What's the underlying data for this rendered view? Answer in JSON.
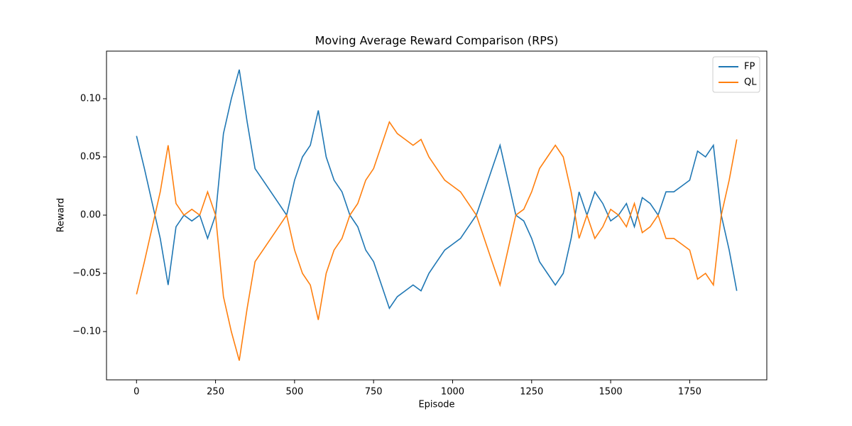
{
  "chart_data": {
    "type": "line",
    "title": "Moving Average Reward Comparison (RPS)",
    "x_label": "Episode",
    "y_label": "Reward",
    "x": [
      0,
      25,
      50,
      75,
      100,
      125,
      150,
      175,
      200,
      225,
      250,
      275,
      300,
      325,
      350,
      375,
      400,
      425,
      450,
      475,
      500,
      525,
      550,
      575,
      600,
      625,
      650,
      675,
      700,
      725,
      750,
      775,
      800,
      825,
      850,
      875,
      900,
      925,
      950,
      975,
      1000,
      1025,
      1050,
      1075,
      1100,
      1125,
      1150,
      1175,
      1200,
      1225,
      1250,
      1275,
      1300,
      1325,
      1350,
      1375,
      1400,
      1425,
      1450,
      1475,
      1500,
      1525,
      1550,
      1575,
      1600,
      1625,
      1650,
      1675,
      1700,
      1725,
      1750,
      1775,
      1800,
      1825,
      1850,
      1875,
      1899
    ],
    "series": [
      {
        "name": "FP",
        "color": "#1f77b4",
        "values": [
          0.068,
          0.04,
          0.01,
          -0.02,
          -0.06,
          -0.01,
          0.0,
          -0.005,
          0.0,
          -0.02,
          0.0,
          0.07,
          0.1,
          0.125,
          0.08,
          0.04,
          0.03,
          0.02,
          0.01,
          0.0,
          0.03,
          0.05,
          0.06,
          0.09,
          0.05,
          0.03,
          0.02,
          0.0,
          -0.01,
          -0.03,
          -0.04,
          -0.06,
          -0.08,
          -0.07,
          -0.065,
          -0.06,
          -0.065,
          -0.05,
          -0.04,
          -0.03,
          -0.025,
          -0.02,
          -0.01,
          0.0,
          0.02,
          0.04,
          0.06,
          0.03,
          0.0,
          -0.005,
          -0.02,
          -0.04,
          -0.05,
          -0.06,
          -0.05,
          -0.02,
          0.02,
          0.0,
          0.02,
          0.01,
          -0.005,
          0.0,
          0.01,
          -0.01,
          0.015,
          0.01,
          0.0,
          0.02,
          0.02,
          0.025,
          0.03,
          0.055,
          0.05,
          0.06,
          0.0,
          -0.03,
          -0.065
        ]
      },
      {
        "name": "QL",
        "color": "#ff7f0e",
        "values": [
          -0.068,
          -0.04,
          -0.01,
          0.02,
          0.06,
          0.01,
          0.0,
          0.005,
          0.0,
          0.02,
          0.0,
          -0.07,
          -0.1,
          -0.125,
          -0.08,
          -0.04,
          -0.03,
          -0.02,
          -0.01,
          0.0,
          -0.03,
          -0.05,
          -0.06,
          -0.09,
          -0.05,
          -0.03,
          -0.02,
          0.0,
          0.01,
          0.03,
          0.04,
          0.06,
          0.08,
          0.07,
          0.065,
          0.06,
          0.065,
          0.05,
          0.04,
          0.03,
          0.025,
          0.02,
          0.01,
          0.0,
          -0.02,
          -0.04,
          -0.06,
          -0.03,
          0.0,
          0.005,
          0.02,
          0.04,
          0.05,
          0.06,
          0.05,
          0.02,
          -0.02,
          0.0,
          -0.02,
          -0.01,
          0.005,
          0.0,
          -0.01,
          0.01,
          -0.015,
          -0.01,
          0.0,
          -0.02,
          -0.02,
          -0.025,
          -0.03,
          -0.055,
          -0.05,
          -0.06,
          0.0,
          0.03,
          0.065
        ]
      }
    ],
    "xlim": [
      -94.95,
      1993.95
    ],
    "xticks": [
      0,
      250,
      500,
      750,
      1000,
      1250,
      1500,
      1750
    ],
    "ylim": [
      -0.1415,
      0.1409
    ],
    "yticks": [
      {
        "value": -0.1,
        "label": "−0.10"
      },
      {
        "value": -0.05,
        "label": "−0.05"
      },
      {
        "value": 0,
        "label": "0.00"
      },
      {
        "value": 0.05,
        "label": "0.05"
      },
      {
        "value": 0.1,
        "label": "0.10"
      }
    ],
    "grid": false,
    "legend": "upper right"
  }
}
